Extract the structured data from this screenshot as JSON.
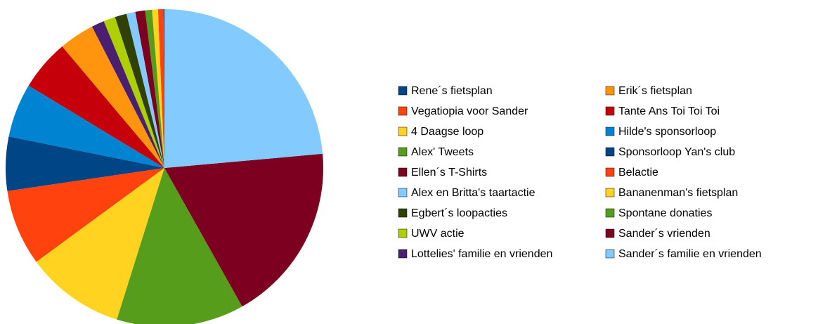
{
  "chart_data": {
    "type": "pie",
    "categories": [
      "Rene´s fietsplan",
      "Vegatiopia voor Sander",
      "4 Daagse loop",
      "Alex' Tweets",
      "Ellen´s T-Shirts",
      "Alex en Britta's taartactie",
      "Egbert´s loopacties",
      "UWV actie",
      "Lottelies' familie en vrienden",
      "Erik´s fietsplan",
      "Tante Ans Toi Toi Toi",
      "Hilde's sponsorloop",
      "Sponsorloop Yan's club",
      "Belactie",
      "Bananenman's fietsplan",
      "Spontane donaties",
      "Sander´s vrienden",
      "Sander´s familie en vrienden"
    ],
    "values": [
      0.1,
      0.55,
      0.6,
      0.7,
      1.0,
      0.9,
      1.2,
      1.2,
      1.3,
      3.6,
      5.2,
      5.5,
      5.5,
      7.75,
      10.1,
      13,
      18.3,
      23.6
    ],
    "colors": [
      "#004586",
      "#ff420e",
      "#ffd320",
      "#579d1c",
      "#7e0021",
      "#83caff",
      "#314004",
      "#aecf00",
      "#4b1f6f",
      "#ff950e",
      "#c5000b",
      "#0084d1",
      "#004586",
      "#ff420e",
      "#ffd320",
      "#579d1c",
      "#7e0021",
      "#83caff"
    ],
    "legend": "right"
  }
}
